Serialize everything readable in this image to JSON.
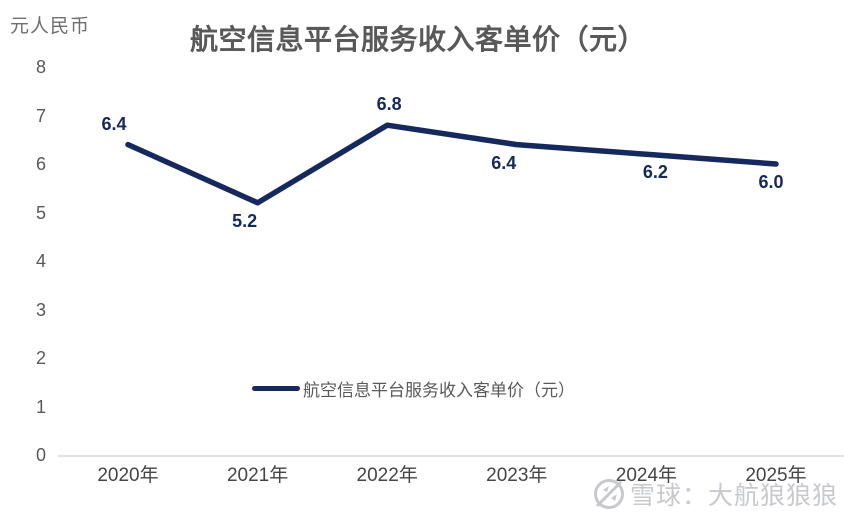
{
  "header": {
    "unit_label": "元人民币",
    "title": "航空信息平台服务收入客单价（元）"
  },
  "colors": {
    "line": "#16295e",
    "data_label": "#16295e",
    "title_text": "#595959",
    "y_axis_text": "#595959",
    "x_axis_text": "#454545",
    "axis_line": "#d9d9d9",
    "watermark": "#c7c9ce",
    "background": "#ffffff"
  },
  "chart_data": {
    "type": "line",
    "title": "航空信息平台服务收入客单价（元）",
    "ylabel": "元人民币",
    "x": [
      "2020年",
      "2021年",
      "2022年",
      "2023年",
      "2024年",
      "2025年"
    ],
    "series": [
      {
        "name": "航空信息平台服务收入客单价（元）",
        "values": [
          6.4,
          5.2,
          6.8,
          6.4,
          6.2,
          6.0
        ]
      }
    ],
    "data_labels": [
      "6.4",
      "5.2",
      "6.8",
      "6.4",
      "6.2",
      "6.0"
    ],
    "label_placement": [
      "above",
      "below",
      "above",
      "below",
      "below",
      "below"
    ],
    "label_dx": [
      -14,
      -13,
      2,
      -13,
      9,
      -5
    ],
    "ylim": [
      0,
      8
    ],
    "ytick_step": 1,
    "grid": false,
    "legend_position": "bottom-center-inside"
  },
  "legend": {
    "label": "航空信息平台服务收入客单价（元）"
  },
  "watermark": {
    "logo": "xueqiu-logo",
    "text": "雪球：大航狼狼狼"
  }
}
